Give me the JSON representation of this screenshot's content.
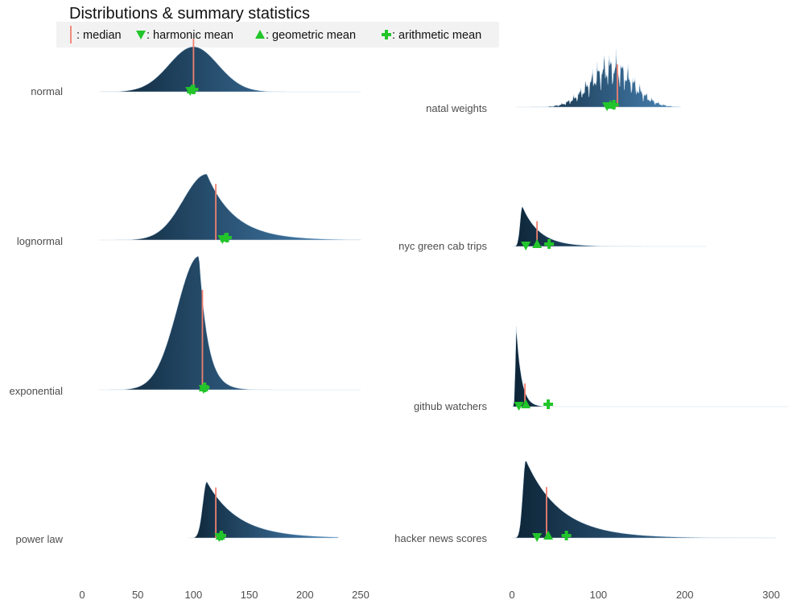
{
  "colors": {
    "fill_dark": "#0d2436",
    "fill_light": "#4a86b8",
    "median": "#f08070",
    "marker": "#22c52a",
    "legend_bg": "#f2f2f2"
  },
  "chart_data": {
    "type": "ridgeline",
    "title": "Distributions & summary statistics",
    "legend": {
      "position": "top-left",
      "entries": [
        {
          "symbol": "median-line",
          "label": ": median"
        },
        {
          "symbol": "triangle-down",
          "label": ": harmonic mean"
        },
        {
          "symbol": "triangle-up",
          "label": ": geometric mean"
        },
        {
          "symbol": "cross",
          "label": ": arithmetic mean"
        }
      ]
    },
    "panels": [
      {
        "name": "left",
        "xlim": [
          0,
          250
        ],
        "xticks": [
          0,
          50,
          100,
          150,
          200,
          250
        ],
        "series": [
          {
            "name": "normal",
            "kind": "normal",
            "xmin": 15,
            "xmax": 250,
            "mode": 100,
            "spread": 22,
            "median": 100,
            "harmonic_mean": 97,
            "geometric_mean": 98,
            "arithmetic_mean": 100
          },
          {
            "name": "lognormal",
            "kind": "right-skew",
            "xmin": 15,
            "xmax": 250,
            "mode": 112,
            "spread": 25,
            "median": 120,
            "harmonic_mean": 126,
            "geometric_mean": 128,
            "arithmetic_mean": 130
          },
          {
            "name": "exponential",
            "kind": "right-skew",
            "xmin": 15,
            "xmax": 250,
            "mode": 105,
            "spread": 8,
            "median": 108,
            "harmonic_mean": 109,
            "geometric_mean": 109,
            "arithmetic_mean": 110
          },
          {
            "name": "power law",
            "kind": "right-skew",
            "xmin": 95,
            "xmax": 230,
            "mode": 112,
            "spread": 28,
            "median": 120,
            "harmonic_mean": 123,
            "geometric_mean": 124,
            "arithmetic_mean": 125
          }
        ]
      },
      {
        "name": "right",
        "xlim": [
          0,
          300
        ],
        "xticks": [
          0,
          100,
          200,
          300
        ],
        "series": [
          {
            "name": "natal weights",
            "kind": "jagged",
            "xmin": 5,
            "xmax": 195,
            "mode": 115,
            "spread": 25,
            "median": 122,
            "harmonic_mean": 110,
            "geometric_mean": 114,
            "arithmetic_mean": 118
          },
          {
            "name": "nyc green cab trips",
            "kind": "right-skew",
            "xmin": 0,
            "xmax": 225,
            "mode": 12,
            "spread": 20,
            "median": 29,
            "harmonic_mean": 16,
            "geometric_mean": 29,
            "arithmetic_mean": 43
          },
          {
            "name": "github watchers",
            "kind": "right-skew",
            "xmin": 0,
            "xmax": 320,
            "mode": 5,
            "spread": 6,
            "median": 15,
            "harmonic_mean": 8,
            "geometric_mean": 16,
            "arithmetic_mean": 42
          },
          {
            "name": "hacker news scores",
            "kind": "right-skew",
            "xmin": 0,
            "xmax": 305,
            "mode": 16,
            "spread": 40,
            "median": 40,
            "harmonic_mean": 29,
            "geometric_mean": 42,
            "arithmetic_mean": 63
          }
        ]
      }
    ]
  }
}
